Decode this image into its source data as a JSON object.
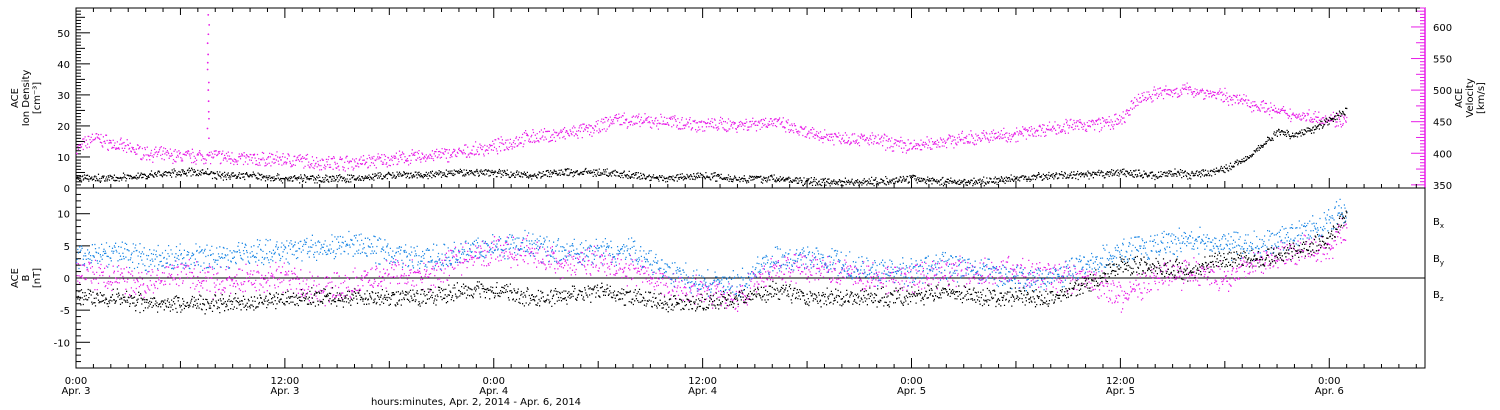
{
  "chart_data": [
    {
      "type": "scatter",
      "panel": "top",
      "ylabel_left": [
        "ACE",
        "Ion Density",
        "[cm⁻³]"
      ],
      "ylabel_right": [
        "ACE",
        "Velocity",
        "[km/s]"
      ],
      "ylim_left": [
        0,
        58
      ],
      "ylim_right": [
        345,
        630
      ],
      "yticks_left": [
        "0",
        "10",
        "20",
        "30",
        "40",
        "50"
      ],
      "yticks_left_values": [
        0,
        10,
        20,
        30,
        40,
        50
      ],
      "yticks_right": [
        "350",
        "400",
        "450",
        "500",
        "550",
        "600"
      ],
      "yticks_right_values": [
        350,
        400,
        450,
        500,
        550,
        600
      ],
      "colors": {
        "density": "#000000",
        "velocity": "#e81ee8"
      },
      "series": [
        {
          "key": "density",
          "axis": "left",
          "x_hours": [
            0,
            2,
            4,
            6,
            7.5,
            8,
            10,
            12,
            14,
            16,
            18,
            20,
            22,
            24,
            26,
            28,
            30,
            32,
            34,
            36,
            38,
            40,
            42,
            44,
            46,
            48,
            50,
            52,
            54,
            56,
            58,
            60,
            62,
            63,
            64,
            66,
            67,
            68,
            69,
            70,
            71,
            72,
            73
          ],
          "values": [
            3,
            3,
            4,
            5,
            5,
            4,
            4,
            3,
            3,
            3,
            4,
            4,
            5,
            5,
            4,
            5,
            5,
            4,
            3,
            4,
            3,
            3,
            2,
            2,
            2,
            3,
            2,
            2,
            3,
            4,
            4,
            5,
            4,
            5,
            4,
            6,
            9,
            13,
            18,
            17,
            19,
            22,
            25
          ]
        },
        {
          "key": "velocity",
          "axis": "right",
          "x_hours": [
            0,
            1,
            2,
            4,
            6,
            8,
            10,
            12,
            14,
            16,
            18,
            20,
            22,
            24,
            26,
            28,
            30,
            31,
            32,
            34,
            36,
            38,
            40,
            42,
            44,
            46,
            48,
            50,
            52,
            54,
            56,
            58,
            60,
            61,
            62,
            64,
            66,
            68,
            69,
            70,
            72,
            73
          ],
          "values": [
            405,
            425,
            415,
            400,
            395,
            395,
            390,
            390,
            385,
            385,
            390,
            395,
            400,
            410,
            425,
            430,
            440,
            455,
            450,
            450,
            445,
            445,
            450,
            430,
            425,
            420,
            410,
            420,
            425,
            430,
            440,
            445,
            450,
            485,
            495,
            500,
            490,
            475,
            465,
            460,
            455,
            450
          ]
        }
      ]
    },
    {
      "type": "scatter",
      "panel": "bottom",
      "ylabel_left": [
        "ACE",
        "B",
        "[nT]"
      ],
      "ylim": [
        -14,
        14
      ],
      "yticks_left": [
        "-10",
        "-5",
        "0",
        "5",
        "10"
      ],
      "yticks_left_values": [
        -10,
        -5,
        0,
        5,
        10
      ],
      "xticks": [
        {
          "hour": 0,
          "label": [
            "0:00",
            "Apr. 3"
          ]
        },
        {
          "hour": 12,
          "label": [
            "12:00",
            "Apr. 3"
          ]
        },
        {
          "hour": 24,
          "label": [
            "0:00",
            "Apr. 4"
          ]
        },
        {
          "hour": 36,
          "label": [
            "12:00",
            "Apr. 4"
          ]
        },
        {
          "hour": 48,
          "label": [
            "0:00",
            "Apr. 5"
          ]
        },
        {
          "hour": 60,
          "label": [
            "12:00",
            "Apr. 5"
          ]
        },
        {
          "hour": 72,
          "label": [
            "0:00",
            "Apr. 6"
          ]
        }
      ],
      "xlim_hours": [
        0,
        77.5
      ],
      "xlabel": "hours:minutes, Apr.  2, 2014 - Apr.  6, 2014",
      "legend": [
        {
          "main": "B",
          "sub": "x",
          "color": "#000000"
        },
        {
          "main": "B",
          "sub": "y",
          "color": "#1e88e5"
        },
        {
          "main": "B",
          "sub": "z",
          "color": "#e81ee8"
        }
      ],
      "series": [
        {
          "key": "bx",
          "x_hours": [
            0,
            2,
            4,
            6,
            8,
            10,
            12,
            14,
            16,
            18,
            20,
            22,
            24,
            26,
            28,
            30,
            32,
            34,
            36,
            38,
            40,
            42,
            44,
            46,
            48,
            50,
            52,
            54,
            56,
            58,
            60,
            62,
            64,
            66,
            68,
            70,
            72,
            73
          ],
          "values": [
            -3,
            -3,
            -4,
            -4,
            -4,
            -4,
            -3,
            -3,
            -3,
            -3,
            -3,
            -2,
            -2,
            -3,
            -3,
            -2,
            -3,
            -4,
            -4,
            -3,
            -2,
            -3,
            -3,
            -3,
            -3,
            -2,
            -3,
            -3,
            -3,
            -1,
            2,
            2,
            1,
            3,
            3,
            4,
            6,
            10
          ]
        },
        {
          "key": "by",
          "x_hours": [
            0,
            2,
            4,
            6,
            8,
            10,
            12,
            14,
            16,
            18,
            20,
            22,
            24,
            26,
            28,
            30,
            32,
            34,
            36,
            38,
            40,
            42,
            44,
            46,
            48,
            50,
            52,
            54,
            56,
            58,
            60,
            62,
            64,
            66,
            68,
            70,
            72,
            73
          ],
          "values": [
            3,
            4,
            3,
            3,
            3,
            4,
            4,
            5,
            5,
            4,
            3,
            4,
            5,
            5,
            4,
            4,
            4,
            1,
            -1,
            -1,
            3,
            3,
            2,
            1,
            1,
            2,
            1,
            0,
            0,
            2,
            4,
            5,
            6,
            5,
            5,
            7,
            9,
            11
          ]
        },
        {
          "key": "bz",
          "x_hours": [
            0,
            2,
            4,
            6,
            8,
            10,
            12,
            14,
            16,
            18,
            20,
            22,
            24,
            26,
            28,
            30,
            32,
            34,
            36,
            38,
            40,
            42,
            44,
            46,
            48,
            50,
            52,
            54,
            56,
            58,
            60,
            62,
            64,
            66,
            68,
            70,
            72,
            73
          ],
          "values": [
            1,
            0,
            -1,
            1,
            -1,
            0,
            0,
            -2,
            -1,
            1,
            0,
            3,
            4,
            4,
            2,
            3,
            1,
            -1,
            -2,
            -3,
            1,
            2,
            1,
            0,
            0,
            1,
            1,
            1,
            0,
            0,
            -3,
            0,
            1,
            0,
            3,
            4,
            5,
            8
          ]
        }
      ]
    }
  ]
}
